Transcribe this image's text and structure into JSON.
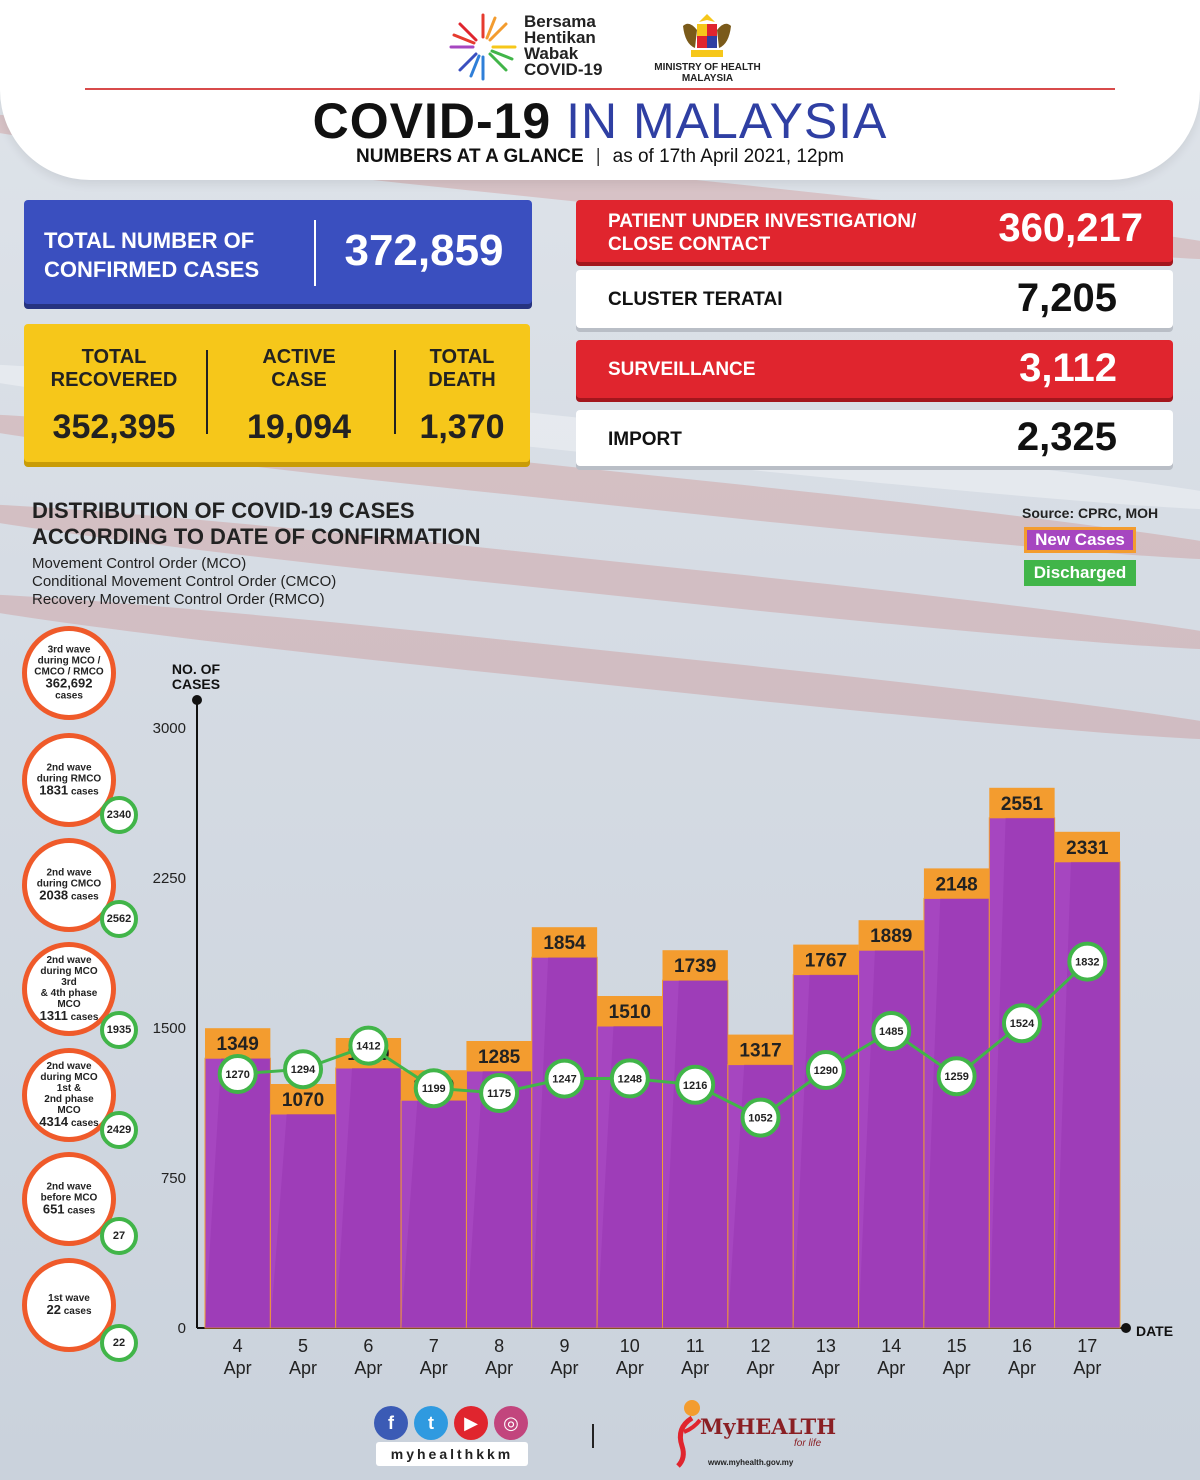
{
  "header": {
    "campaign_line1": "Bersama",
    "campaign_line2": "Hentikan",
    "campaign_line3": "Wabak",
    "campaign_line4": "COVID-19",
    "ministry_line1": "MINISTRY OF HEALTH",
    "ministry_line2": "MALAYSIA",
    "title_part1": "COVID-19",
    "title_part2": "IN MALAYSIA",
    "subtitle_bold": "NUMBERS AT A GLANCE",
    "subtitle_sep": "|",
    "subtitle_date": "as of 17th April 2021, 12pm"
  },
  "totals": {
    "confirmed_label_1": "TOTAL NUMBER OF",
    "confirmed_label_2": "CONFIRMED CASES",
    "confirmed_value": "372,859",
    "recovered_label_1": "TOTAL",
    "recovered_label_2": "RECOVERED",
    "recovered_value": "352,395",
    "active_label_1": "ACTIVE",
    "active_label_2": "CASE",
    "active_value": "19,094",
    "death_label_1": "TOTAL",
    "death_label_2": "DEATH",
    "death_value": "1,370"
  },
  "breakdown": [
    {
      "label_1": "PATIENT UNDER INVESTIGATION/",
      "label_2": "CLOSE CONTACT",
      "value": "360,217",
      "style": "red"
    },
    {
      "label_1": "CLUSTER TERATAI",
      "label_2": "",
      "value": "7,205",
      "style": "white"
    },
    {
      "label_1": "SURVEILLANCE",
      "label_2": "",
      "value": "3,112",
      "style": "red"
    },
    {
      "label_1": "IMPORT",
      "label_2": "",
      "value": "2,325",
      "style": "white"
    }
  ],
  "section": {
    "title_1": "DISTRIBUTION OF COVID-19 CASES",
    "title_2": "ACCORDING TO DATE OF CONFIRMATION",
    "sub_1": "Movement Control Order (MCO)",
    "sub_2": "Conditional Movement Control Order (CMCO)",
    "sub_3": "Recovery Movement Control Order (RMCO)",
    "source": "Source: CPRC, MOH",
    "legend_new": "New Cases",
    "legend_discharged": "Discharged"
  },
  "waves": [
    {
      "l1": "3rd wave",
      "l2": "during MCO /",
      "l3": "CMCO / RMCO",
      "cases": "362,692",
      "unit": "cases",
      "badge": ""
    },
    {
      "l1": "2nd wave",
      "l2": "during RMCO",
      "l3": "",
      "cases": "1831",
      "unit": "cases",
      "badge": "2340"
    },
    {
      "l1": "2nd wave",
      "l2": "during CMCO",
      "l3": "",
      "cases": "2038",
      "unit": "cases",
      "badge": "2562"
    },
    {
      "l1": "2nd wave",
      "l2": "during MCO 3rd",
      "l3": "& 4th phase MCO",
      "cases": "1311",
      "unit": "cases",
      "badge": "1935"
    },
    {
      "l1": "2nd wave",
      "l2": "during MCO 1st &",
      "l3": "2nd phase MCO",
      "cases": "4314",
      "unit": "cases",
      "badge": "2429"
    },
    {
      "l1": "2nd wave",
      "l2": "before MCO",
      "l3": "",
      "cases": "651",
      "unit": "cases",
      "badge": "27"
    },
    {
      "l1": "1st wave",
      "l2": "",
      "l3": "",
      "cases": "22",
      "unit": "cases",
      "badge": "22"
    }
  ],
  "chart_data": {
    "type": "bar",
    "ylabel_1": "NO. OF",
    "ylabel_2": "CASES",
    "xlabel": "DATE",
    "ylim": [
      0,
      3000
    ],
    "yticks": [
      0,
      750,
      1500,
      2250,
      3000
    ],
    "categories": [
      {
        "day": "4",
        "month": "Apr"
      },
      {
        "day": "5",
        "month": "Apr"
      },
      {
        "day": "6",
        "month": "Apr"
      },
      {
        "day": "7",
        "month": "Apr"
      },
      {
        "day": "8",
        "month": "Apr"
      },
      {
        "day": "9",
        "month": "Apr"
      },
      {
        "day": "10",
        "month": "Apr"
      },
      {
        "day": "11",
        "month": "Apr"
      },
      {
        "day": "12",
        "month": "Apr"
      },
      {
        "day": "13",
        "month": "Apr"
      },
      {
        "day": "14",
        "month": "Apr"
      },
      {
        "day": "15",
        "month": "Apr"
      },
      {
        "day": "16",
        "month": "Apr"
      },
      {
        "day": "17",
        "month": "Apr"
      }
    ],
    "series": [
      {
        "name": "New Cases",
        "kind": "bar",
        "color": "#a646c0",
        "label_color": "#f39c2f",
        "values": [
          1349,
          1070,
          1300,
          1139,
          1285,
          1854,
          1510,
          1739,
          1317,
          1767,
          1889,
          2148,
          2551,
          2331
        ]
      },
      {
        "name": "Discharged",
        "kind": "line",
        "color": "#41b549",
        "values": [
          1270,
          1294,
          1412,
          1199,
          1175,
          1247,
          1248,
          1216,
          1052,
          1290,
          1485,
          1259,
          1524,
          1832
        ]
      }
    ]
  },
  "footer": {
    "handle": "myhealthkkm",
    "social_icons": [
      "facebook-icon",
      "twitter-icon",
      "youtube-icon",
      "instagram-icon"
    ],
    "brand": "MyHEALTH",
    "tagline": "for life",
    "url": "www.myhealth.gov.my"
  }
}
